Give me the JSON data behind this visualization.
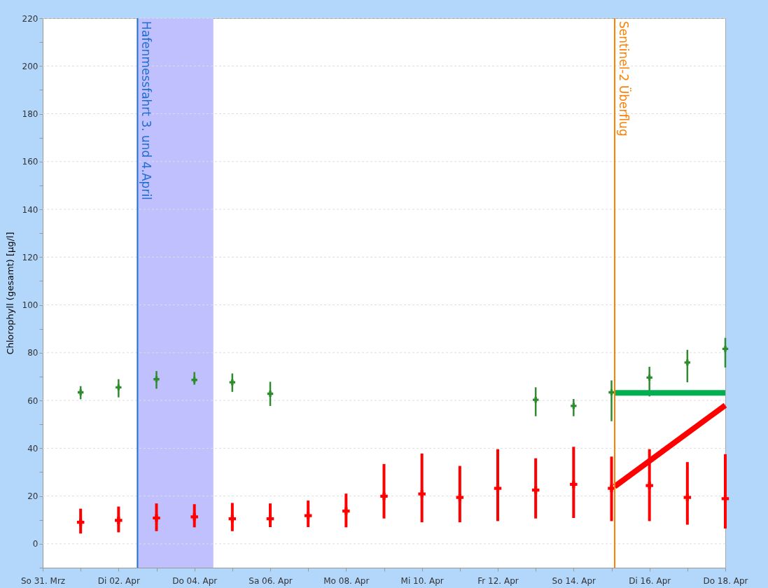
{
  "chart_data": {
    "type": "scatter",
    "ylabel": "Chlorophyll (gesamt) [µg/l]",
    "x": [
      "--04-01",
      "--04-02",
      "--04-03",
      "--04-04",
      "--04-05",
      "--04-06",
      "--04-07",
      "--04-08",
      "--04-09",
      "--04-10",
      "--04-11",
      "--04-12",
      "--04-13",
      "--04-14",
      "--04-15",
      "--04-16",
      "--04-17",
      "--04-18"
    ],
    "series": [
      {
        "color": "#2e8b2e",
        "marker": "cross",
        "values": [
          63.4,
          65.5,
          68.9,
          68.6,
          67.6,
          62.8,
          null,
          null,
          null,
          null,
          null,
          null,
          60.3,
          57.7,
          63.4,
          69.6,
          75.9,
          81.6
        ],
        "errors": [
          [
            60.5,
            66
          ],
          [
            61.3,
            68.9
          ],
          [
            64.9,
            72.3
          ],
          [
            66.6,
            71.9
          ],
          [
            63.6,
            71.3
          ],
          [
            57.7,
            67.8
          ],
          null,
          null,
          null,
          null,
          null,
          null,
          [
            53.4,
            65.5
          ],
          [
            53.4,
            60.6
          ],
          [
            51.3,
            68.4
          ],
          [
            61.7,
            74.1
          ],
          [
            67.6,
            81.2
          ],
          [
            73.8,
            86.2
          ]
        ]
      },
      {
        "color": "#ff0000",
        "marker": "cross",
        "values": [
          9,
          9.8,
          10.8,
          11.3,
          10.5,
          10.5,
          11.8,
          13.7,
          19.9,
          20.9,
          19.4,
          23.2,
          22.5,
          24.9,
          23.2,
          24.4,
          19.4,
          18.9
        ],
        "errors": [
          [
            4.3,
            14.7
          ],
          [
            4.8,
            15.6
          ],
          [
            5.3,
            16.9
          ],
          [
            6.9,
            16.6
          ],
          [
            5.3,
            17.1
          ],
          [
            7,
            16.9
          ],
          [
            7,
            18.1
          ],
          [
            6.9,
            21
          ],
          [
            10.6,
            33.4
          ],
          [
            9,
            37.8
          ],
          [
            9,
            32.6
          ],
          [
            9.5,
            39.6
          ],
          [
            10.6,
            35.8
          ],
          [
            10.8,
            40.6
          ],
          [
            9.5,
            36.5
          ],
          [
            9.5,
            39.6
          ],
          [
            8,
            34.2
          ],
          [
            6.4,
            37.5
          ]
        ]
      },
      {
        "type": "line",
        "color": "#00b050",
        "x": [
          "--04-15T02:00",
          "--04-18"
        ],
        "values": [
          63.2,
          63.2
        ]
      },
      {
        "type": "line",
        "color": "#ff0000",
        "x": [
          "--04-15T02:00",
          "--04-18"
        ],
        "values": [
          24,
          58
        ]
      }
    ],
    "xlim": [
      "--03-31",
      "--04-18"
    ],
    "xticks": [
      {
        "value": "--03-31",
        "label": "So 31. Mrz"
      },
      {
        "value": "--04-01",
        "label": null
      },
      {
        "value": "--04-02",
        "label": "Di 02. Apr"
      },
      {
        "value": "--04-03",
        "label": null
      },
      {
        "value": "--04-04",
        "label": "Do 04. Apr"
      },
      {
        "value": "--04-05",
        "label": null
      },
      {
        "value": "--04-06",
        "label": "Sa 06. Apr"
      },
      {
        "value": "--04-07",
        "label": null
      },
      {
        "value": "--04-08",
        "label": "Mo 08. Apr"
      },
      {
        "value": "--04-09",
        "label": null
      },
      {
        "value": "--04-10",
        "label": "Mi 10. Apr"
      },
      {
        "value": "--04-11",
        "label": null
      },
      {
        "value": "--04-12",
        "label": "Fr 12. Apr"
      },
      {
        "value": "--04-13",
        "label": null
      },
      {
        "value": "--04-14",
        "label": "So 14. Apr"
      },
      {
        "value": "--04-15",
        "label": null
      },
      {
        "value": "--04-16",
        "label": "Di 16. Apr"
      },
      {
        "value": "--04-17",
        "label": null
      },
      {
        "value": "--04-18",
        "label": "Do 18. Apr"
      }
    ],
    "ylim": [
      -10,
      220
    ],
    "yticks": [
      {
        "value": -10,
        "label": null
      },
      0,
      {
        "value": 10,
        "label": null
      },
      20,
      {
        "value": 30,
        "label": null
      },
      40,
      {
        "value": 50,
        "label": null
      },
      60,
      {
        "value": 70,
        "label": null
      },
      80,
      {
        "value": 90,
        "label": null
      },
      100,
      {
        "value": 110,
        "label": null
      },
      120,
      {
        "value": 130,
        "label": null
      },
      140,
      {
        "value": 150,
        "label": null
      },
      160,
      {
        "value": 170,
        "label": null
      },
      180,
      {
        "value": 190,
        "label": null
      },
      200,
      {
        "value": 210,
        "label": null
      },
      220
    ],
    "grid": "y",
    "bands": [
      {
        "axis": "x",
        "from": "--04-02T12:00",
        "to": "--04-04T12:00",
        "color": "#c0c0ff"
      }
    ],
    "ref_lines": [
      {
        "axis": "x",
        "value": "--04-02T12:00",
        "label": "Hafenmessfahrt 3. und 4.April",
        "color": "#1f6fd0"
      },
      {
        "axis": "x",
        "value": "--04-15T02:00",
        "label": "Sentinel-2 Überflug",
        "color": "#ff8000"
      }
    ]
  }
}
